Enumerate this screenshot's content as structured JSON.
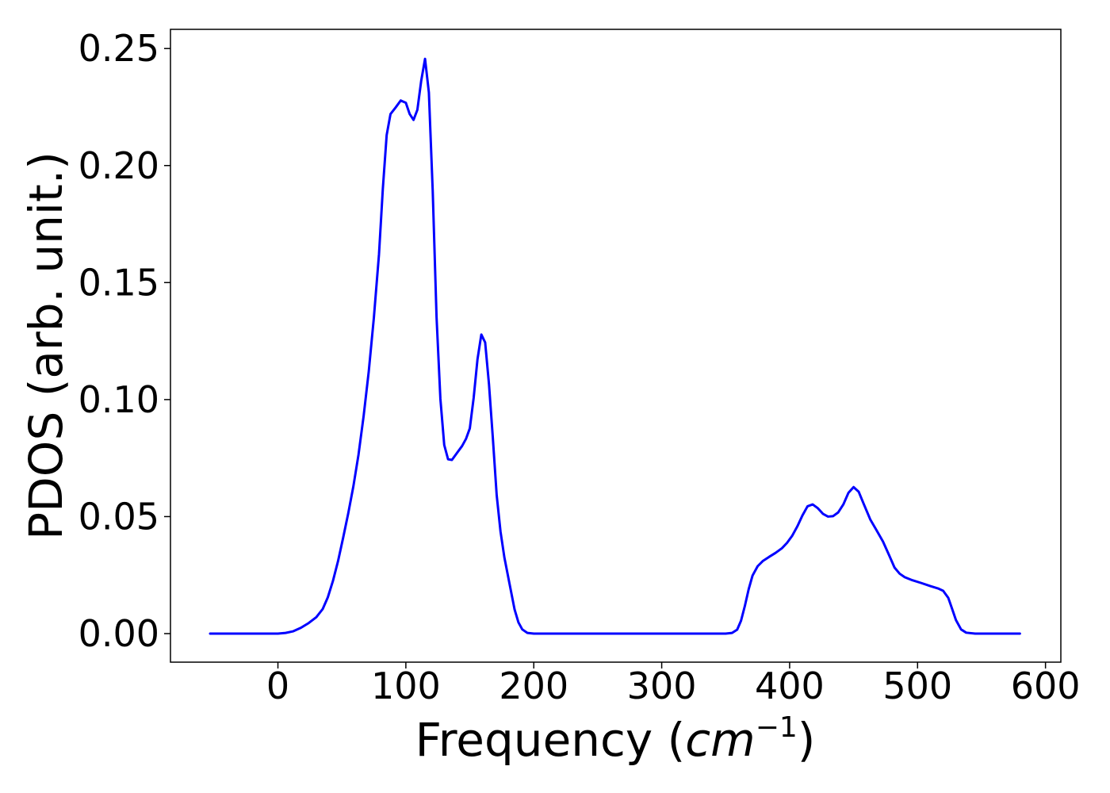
{
  "chart_data": {
    "type": "line",
    "xlabel": "Frequency (",
    "xlabel_math": "cm",
    "xlabel_exponent": "−1",
    "xlabel_close": ")",
    "ylabel": "PDOS (arb. unit.)",
    "xlim": [
      -84,
      612
    ],
    "ylim": [
      -0.0122,
      0.2582
    ],
    "x_ticks": [
      0,
      100,
      200,
      300,
      400,
      500,
      600
    ],
    "y_ticks": [
      0.0,
      0.05,
      0.1,
      0.15,
      0.2,
      0.25
    ],
    "y_tick_labels": [
      "0.00",
      "0.05",
      "0.10",
      "0.15",
      "0.20",
      "0.25"
    ],
    "grid": false,
    "legend": "none",
    "series": [
      {
        "color": "#0000ff",
        "points": [
          [
            -53,
            0.0
          ],
          [
            -20,
            0.0
          ],
          [
            0,
            0.0
          ],
          [
            6,
            0.0003
          ],
          [
            12,
            0.001
          ],
          [
            18,
            0.0025
          ],
          [
            24,
            0.0045
          ],
          [
            30,
            0.007
          ],
          [
            35,
            0.0105
          ],
          [
            39,
            0.0155
          ],
          [
            43,
            0.0225
          ],
          [
            47,
            0.031
          ],
          [
            51,
            0.041
          ],
          [
            55,
            0.0515
          ],
          [
            59,
            0.063
          ],
          [
            63,
            0.0765
          ],
          [
            67,
            0.093
          ],
          [
            71,
            0.112
          ],
          [
            75,
            0.135
          ],
          [
            79,
            0.162
          ],
          [
            82,
            0.19
          ],
          [
            85,
            0.213
          ],
          [
            88,
            0.222
          ],
          [
            92,
            0.2248
          ],
          [
            96,
            0.2278
          ],
          [
            100,
            0.2268
          ],
          [
            103,
            0.222
          ],
          [
            106,
            0.2195
          ],
          [
            109,
            0.2238
          ],
          [
            112,
            0.2362
          ],
          [
            115,
            0.2456
          ],
          [
            118,
            0.2312
          ],
          [
            121,
            0.1892
          ],
          [
            124,
            0.1352
          ],
          [
            127,
            0.1003
          ],
          [
            130,
            0.0806
          ],
          [
            133,
            0.0745
          ],
          [
            136,
            0.0742
          ],
          [
            140,
            0.0772
          ],
          [
            144,
            0.0802
          ],
          [
            147,
            0.0832
          ],
          [
            150,
            0.0877
          ],
          [
            153,
            0.1007
          ],
          [
            156,
            0.1172
          ],
          [
            159,
            0.1278
          ],
          [
            162,
            0.1244
          ],
          [
            165,
            0.1065
          ],
          [
            168,
            0.0836
          ],
          [
            171,
            0.0592
          ],
          [
            174,
            0.0436
          ],
          [
            177,
            0.0326
          ],
          [
            181,
            0.0214
          ],
          [
            185,
            0.0103
          ],
          [
            188,
            0.0048
          ],
          [
            191,
            0.0018
          ],
          [
            195,
            0.0003
          ],
          [
            200,
            0.0
          ],
          [
            250,
            0.0
          ],
          [
            300,
            0.0
          ],
          [
            350,
            0.0
          ],
          [
            355,
            0.0003
          ],
          [
            359,
            0.0017
          ],
          [
            362,
            0.0055
          ],
          [
            365,
            0.0118
          ],
          [
            368,
            0.019
          ],
          [
            371,
            0.0248
          ],
          [
            375,
            0.0288
          ],
          [
            379,
            0.031
          ],
          [
            384,
            0.0328
          ],
          [
            389,
            0.0345
          ],
          [
            394,
            0.0365
          ],
          [
            398,
            0.0388
          ],
          [
            402,
            0.0418
          ],
          [
            406,
            0.0458
          ],
          [
            410,
            0.0505
          ],
          [
            414,
            0.0544
          ],
          [
            418,
            0.0552
          ],
          [
            422,
            0.0536
          ],
          [
            426,
            0.0512
          ],
          [
            430,
            0.05
          ],
          [
            434,
            0.0502
          ],
          [
            438,
            0.0518
          ],
          [
            442,
            0.0552
          ],
          [
            446,
            0.0602
          ],
          [
            450,
            0.0626
          ],
          [
            454,
            0.0606
          ],
          [
            458,
            0.0553
          ],
          [
            463,
            0.0488
          ],
          [
            468,
            0.0441
          ],
          [
            473,
            0.0393
          ],
          [
            478,
            0.0332
          ],
          [
            482,
            0.0282
          ],
          [
            486,
            0.0256
          ],
          [
            490,
            0.0241
          ],
          [
            496,
            0.0228
          ],
          [
            503,
            0.0216
          ],
          [
            510,
            0.0203
          ],
          [
            516,
            0.0193
          ],
          [
            520,
            0.0183
          ],
          [
            524,
            0.0153
          ],
          [
            527,
            0.0106
          ],
          [
            530,
            0.0058
          ],
          [
            534,
            0.0018
          ],
          [
            538,
            0.0004
          ],
          [
            545,
            0.0
          ],
          [
            580,
            0.0
          ]
        ]
      }
    ]
  }
}
